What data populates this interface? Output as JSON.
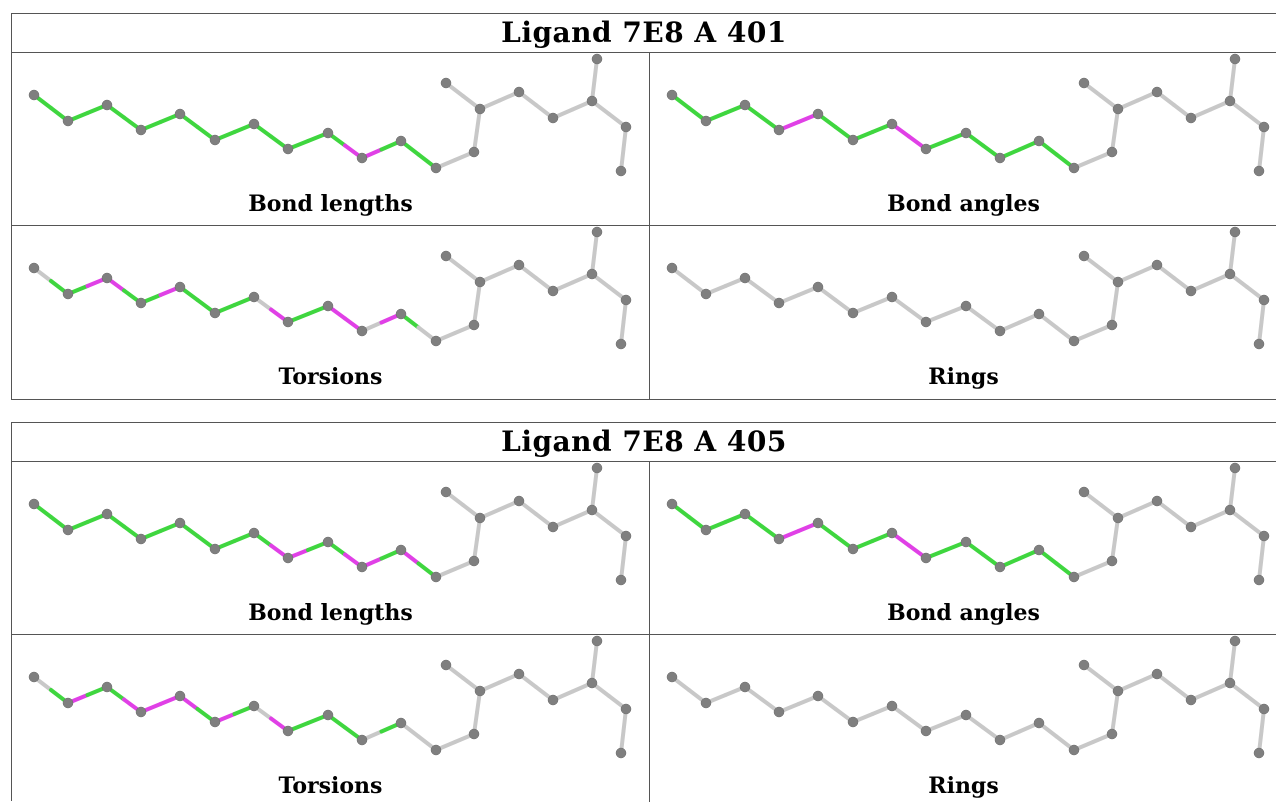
{
  "ligands": [
    {
      "title": "Ligand 7E8 A 401",
      "panels": [
        {
          "label": "Bond lengths",
          "colors": [
            "g",
            "g",
            "g",
            "g",
            "g",
            "g",
            "g",
            "g",
            "g",
            "g",
            "g",
            "g",
            "g",
            "g",
            "g",
            "g",
            "g",
            "m",
            "m",
            "g",
            "g",
            "g"
          ]
        },
        {
          "label": "Bond angles",
          "colors": [
            "g",
            "g",
            "g",
            "g",
            "g",
            "g",
            "m",
            "m",
            "g",
            "g",
            "g",
            "g",
            "m",
            "m",
            "g",
            "g",
            "g",
            "g",
            "g",
            "g",
            "g",
            "g"
          ]
        },
        {
          "label": "Torsions",
          "colors": [
            "n",
            "g",
            "g",
            "m",
            "m",
            "g",
            "g",
            "m",
            "g",
            "g",
            "g",
            "g",
            "n",
            "m",
            "g",
            "g",
            "m",
            "m",
            "n",
            "m",
            "g",
            "n"
          ]
        },
        {
          "label": "Rings",
          "colors": [
            "n",
            "n",
            "n",
            "n",
            "n",
            "n",
            "n",
            "n",
            "n",
            "n",
            "n",
            "n",
            "n",
            "n",
            "n",
            "n",
            "n",
            "n",
            "n",
            "n",
            "n",
            "n"
          ]
        }
      ]
    },
    {
      "title": "Ligand 7E8 A 405",
      "panels": [
        {
          "label": "Bond lengths",
          "colors": [
            "g",
            "g",
            "g",
            "g",
            "g",
            "g",
            "g",
            "g",
            "g",
            "g",
            "g",
            "g",
            "g",
            "m",
            "m",
            "g",
            "g",
            "m",
            "m",
            "g",
            "m",
            "g"
          ]
        },
        {
          "label": "Bond angles",
          "colors": [
            "g",
            "g",
            "g",
            "g",
            "g",
            "g",
            "m",
            "m",
            "g",
            "g",
            "g",
            "g",
            "m",
            "m",
            "g",
            "g",
            "g",
            "g",
            "g",
            "g",
            "g",
            "g"
          ]
        },
        {
          "label": "Torsions",
          "colors": [
            "n",
            "g",
            "m",
            "g",
            "g",
            "m",
            "m",
            "m",
            "m",
            "g",
            "m",
            "g",
            "n",
            "m",
            "g",
            "g",
            "g",
            "g",
            "n",
            "g",
            "n",
            "n"
          ]
        },
        {
          "label": "Rings",
          "colors": [
            "n",
            "n",
            "n",
            "n",
            "n",
            "n",
            "n",
            "n",
            "n",
            "n",
            "n",
            "n",
            "n",
            "n",
            "n",
            "n",
            "n",
            "n",
            "n",
            "n",
            "n",
            "n"
          ]
        }
      ]
    }
  ],
  "palette": {
    "g": "#3fd63f",
    "m": "#e040e6",
    "n": "#c8c8c8",
    "atom": "#7f7f7f",
    "line": "#555555"
  }
}
